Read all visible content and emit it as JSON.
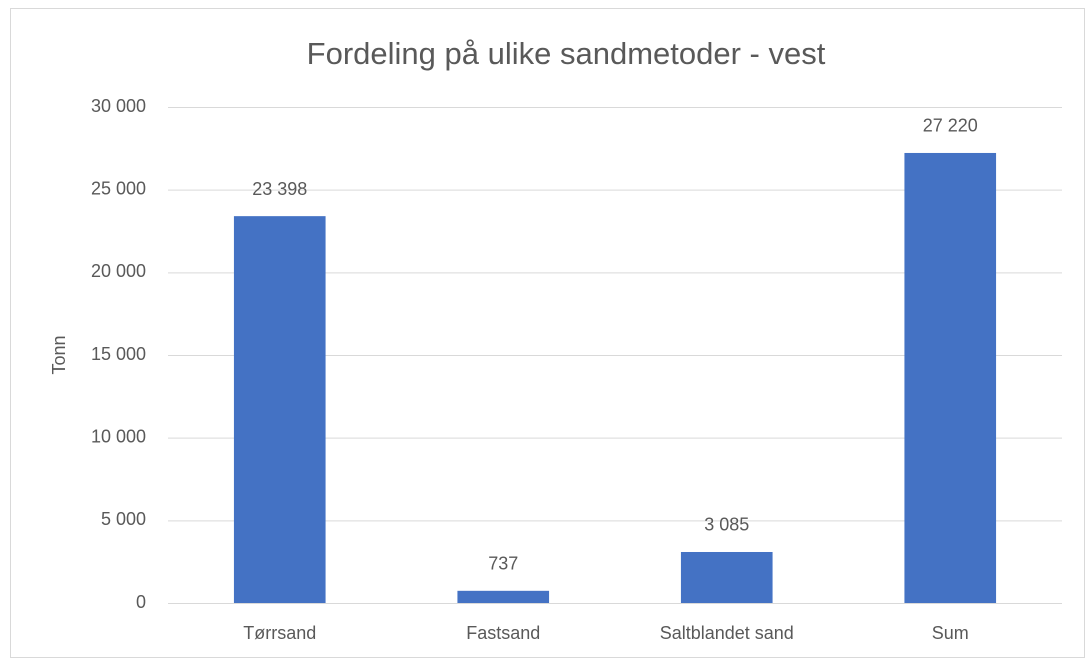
{
  "chart_data": {
    "type": "bar",
    "title": "Fordeling på ulike sandmetoder - vest",
    "y_label": "Tonn",
    "categories": [
      "Tørrsand",
      "Fastsand",
      "Saltblandet sand",
      "Sum"
    ],
    "values": [
      23398,
      737,
      3085,
      27220
    ],
    "value_labels": [
      "23 398",
      "737",
      "3 085",
      "27 220"
    ],
    "color": "#4472c4",
    "ylim": [
      0,
      30000
    ],
    "yticks": [
      0,
      {
        "value": 5000,
        "label": "5 000"
      },
      {
        "value": 10000,
        "label": "10 000"
      },
      {
        "value": 15000,
        "label": "15 000"
      },
      {
        "value": 20000,
        "label": "20 000"
      },
      {
        "value": 25000,
        "label": "25 000"
      },
      {
        "value": 30000,
        "label": "30 000"
      }
    ],
    "grid": true
  }
}
